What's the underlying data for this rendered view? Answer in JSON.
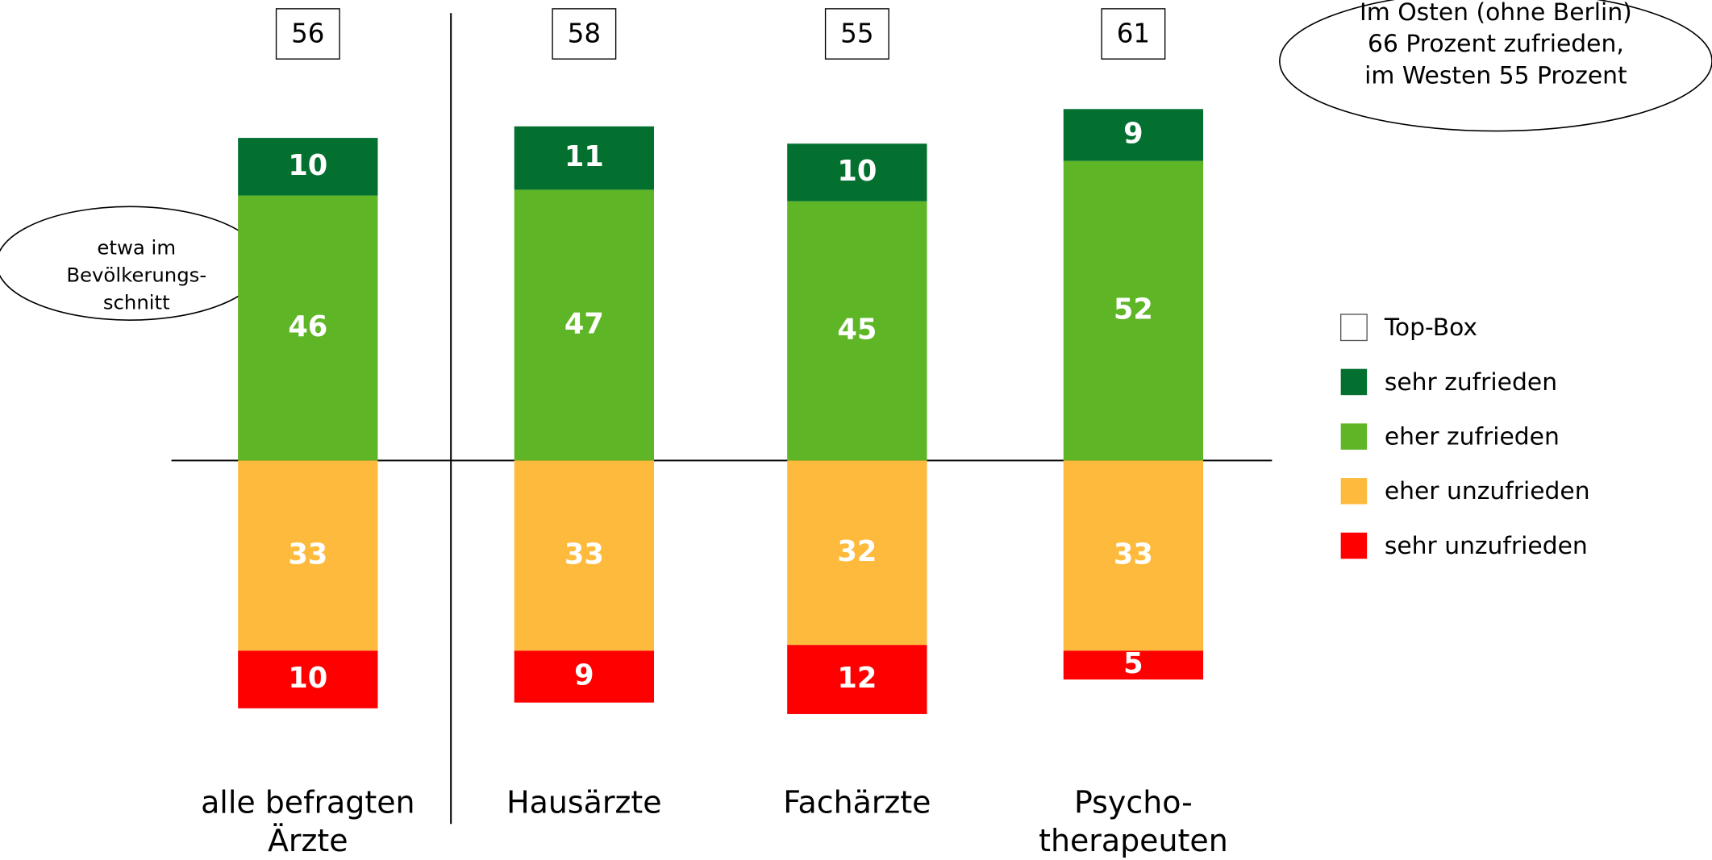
{
  "chart_data": {
    "type": "diverging-stacked-bar",
    "categories": [
      [
        "alle befragten",
        "Ärzte"
      ],
      [
        "Hausärzte"
      ],
      [
        "Fachärzte"
      ],
      [
        "Psycho-",
        "therapeuten"
      ]
    ],
    "series": [
      {
        "name": "Top-Box",
        "color": "#ffffff",
        "values": [
          56,
          58,
          55,
          61
        ]
      },
      {
        "name": "sehr zufrieden",
        "color": "#03702f",
        "values": [
          10,
          11,
          10,
          9
        ]
      },
      {
        "name": "eher zufrieden",
        "color": "#5eb526",
        "values": [
          46,
          47,
          45,
          52
        ]
      },
      {
        "name": "eher unzufrieden",
        "color": "#fdba3d",
        "values": [
          33,
          33,
          32,
          33
        ]
      },
      {
        "name": "sehr unzufrieden",
        "color": "#fe0000",
        "values": [
          10,
          9,
          12,
          5
        ]
      }
    ],
    "annotations": [
      [
        "etwa im",
        "Bevölkerungs-",
        "schnitt"
      ],
      [
        "Im Osten (ohne Berlin)",
        "66 Prozent zufrieden,",
        "im Westen 55 Prozent"
      ]
    ],
    "legend": "right"
  }
}
